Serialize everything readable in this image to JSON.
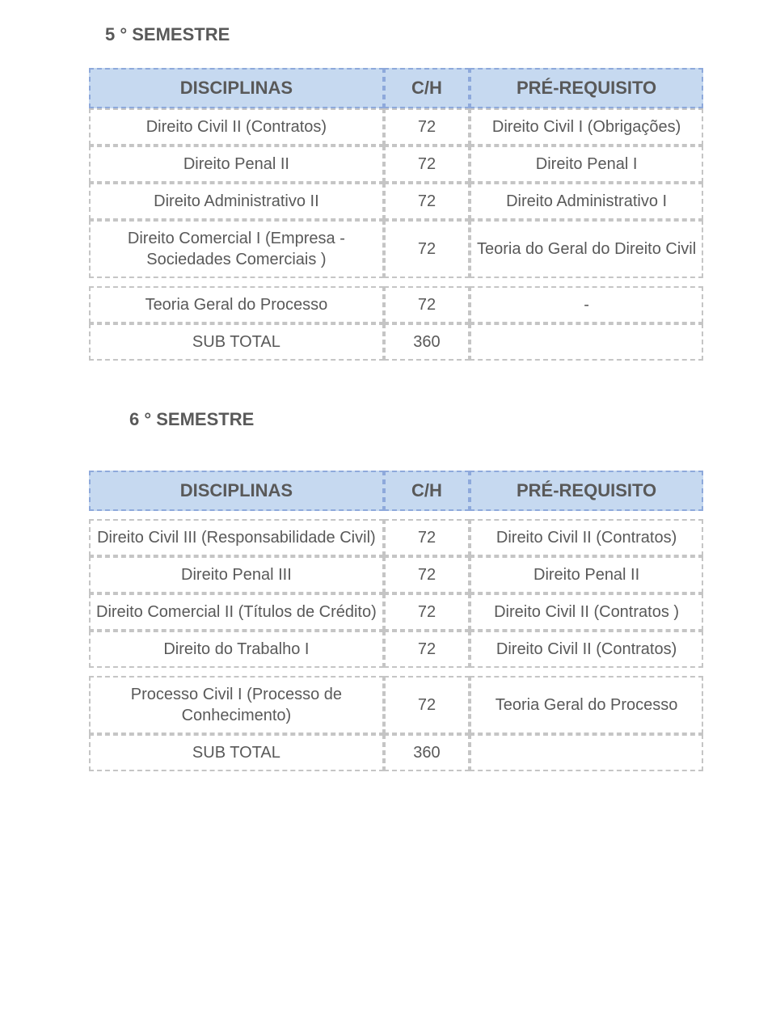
{
  "headers": {
    "disciplinas": "DISCIPLINAS",
    "ch": "C/H",
    "pre": "PRÉ-REQUISITO"
  },
  "sem5": {
    "title": "5 ° SEMESTRE",
    "rows": [
      {
        "disc": "Direito Civil II (Contratos)",
        "ch": "72",
        "pre": "Direito Civil I (Obrigações)"
      },
      {
        "disc": "Direito Penal II",
        "ch": "72",
        "pre": "Direito Penal I"
      },
      {
        "disc": "Direito Administrativo II",
        "ch": "72",
        "pre": "Direito Administrativo I"
      },
      {
        "disc": "Direito Comercial I (Empresa - Sociedades Comerciais )",
        "ch": "72",
        "pre": "Teoria do Geral do Direito Civil"
      },
      {
        "disc": "Teoria Geral do Processo",
        "ch": "72",
        "pre": "-"
      },
      {
        "disc": "SUB TOTAL",
        "ch": "360",
        "pre": ""
      }
    ]
  },
  "sem6": {
    "title": "6 ° SEMESTRE",
    "rows": [
      {
        "disc": "Direito Civil III (Responsabilidade Civil)",
        "ch": "72",
        "pre": "Direito Civil II (Contratos)"
      },
      {
        "disc": "Direito Penal III",
        "ch": "72",
        "pre": "Direito Penal II"
      },
      {
        "disc": "Direito Comercial II (Títulos de Crédito)",
        "ch": "72",
        "pre": "Direito Civil II (Contratos )"
      },
      {
        "disc": "Direito do Trabalho I",
        "ch": "72",
        "pre": "Direito Civil II (Contratos)"
      },
      {
        "disc": "Processo Civil I (Processo de Conhecimento)",
        "ch": "72",
        "pre": "Teoria Geral do Processo"
      },
      {
        "disc": "SUB TOTAL",
        "ch": "360",
        "pre": ""
      }
    ]
  },
  "style": {
    "header_bg": "#c6d9f0",
    "header_border": "#8ea9db",
    "body_border": "#c5c5c5",
    "text_color": "#595959",
    "font_family": "Verdana",
    "title_fontsize": 22,
    "header_fontsize": 22,
    "cell_fontsize": 20,
    "dash_style": "dashed",
    "col_widths_pct": [
      48,
      14,
      38
    ]
  }
}
